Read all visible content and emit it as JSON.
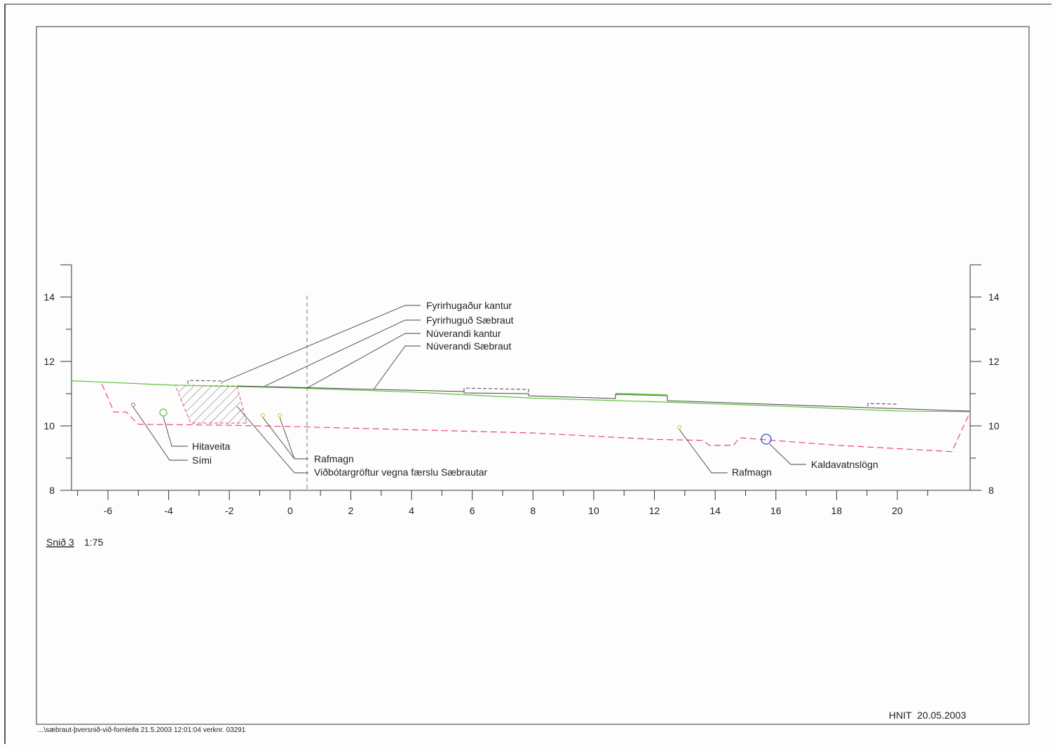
{
  "drawing": {
    "section_label": "Snið 3",
    "scale": "1:75",
    "stamp": "HNIT  20.05.2003",
    "file_note": "...\\sæbraut-þversnið-við-fornleifa  21.5.2003 12:01:04 verknr. 03291"
  },
  "chart_data": {
    "type": "cross-section",
    "x_ticks": [
      "-6",
      "-4",
      "-2",
      "0",
      "2",
      "4",
      "6",
      "8",
      "10",
      "12",
      "14",
      "16",
      "18",
      "20"
    ],
    "y_ticks": [
      "8",
      "10",
      "12",
      "14"
    ],
    "xlim": [
      -7.2,
      22.4
    ],
    "ylim": [
      8,
      15
    ],
    "colors": {
      "ground": "#5fbf3c",
      "road": "#555555",
      "trench": "#e8457a",
      "water": "#2a4fe0",
      "frame": "#333333"
    },
    "ground_line": [
      [
        -7.2,
        11.4
      ],
      [
        -4,
        11.27
      ],
      [
        0,
        11.18
      ],
      [
        4,
        11.05
      ],
      [
        8,
        10.86
      ],
      [
        12,
        10.75
      ],
      [
        16,
        10.62
      ],
      [
        20,
        10.46
      ],
      [
        22.4,
        10.44
      ]
    ],
    "trench_profile": [
      [
        -6.2,
        11.3
      ],
      [
        -5.8,
        10.43
      ],
      [
        -5.4,
        10.43
      ],
      [
        -5.0,
        10.05
      ],
      [
        -2,
        10.02
      ],
      [
        0,
        9.98
      ],
      [
        4,
        9.88
      ],
      [
        8,
        9.78
      ],
      [
        12,
        9.58
      ],
      [
        13.6,
        9.55
      ],
      [
        13.8,
        9.4
      ],
      [
        14.6,
        9.4
      ],
      [
        14.8,
        9.63
      ],
      [
        18,
        9.4
      ],
      [
        21.8,
        9.2
      ],
      [
        22.4,
        10.44
      ]
    ],
    "labels": {
      "fyrirhugadur_kantur": "Fyrirhugaður kantur",
      "fyrirhugud_saebraut": "Fyrirhuguð Sæbraut",
      "nuverandi_kantur": "Núverandi kantur",
      "nuverandi_saebraut": "Núverandi Sæbraut",
      "hitaveita": "Hitaveita",
      "simi": "Sími",
      "rafmagn_left": "Rafmagn",
      "vidbotargroftur": "Viðbótargröftur vegna færslu Sæbrautar",
      "rafmagn_right": "Rafmagn",
      "kaldavatnslogn": "Kaldavatnslögn"
    }
  }
}
